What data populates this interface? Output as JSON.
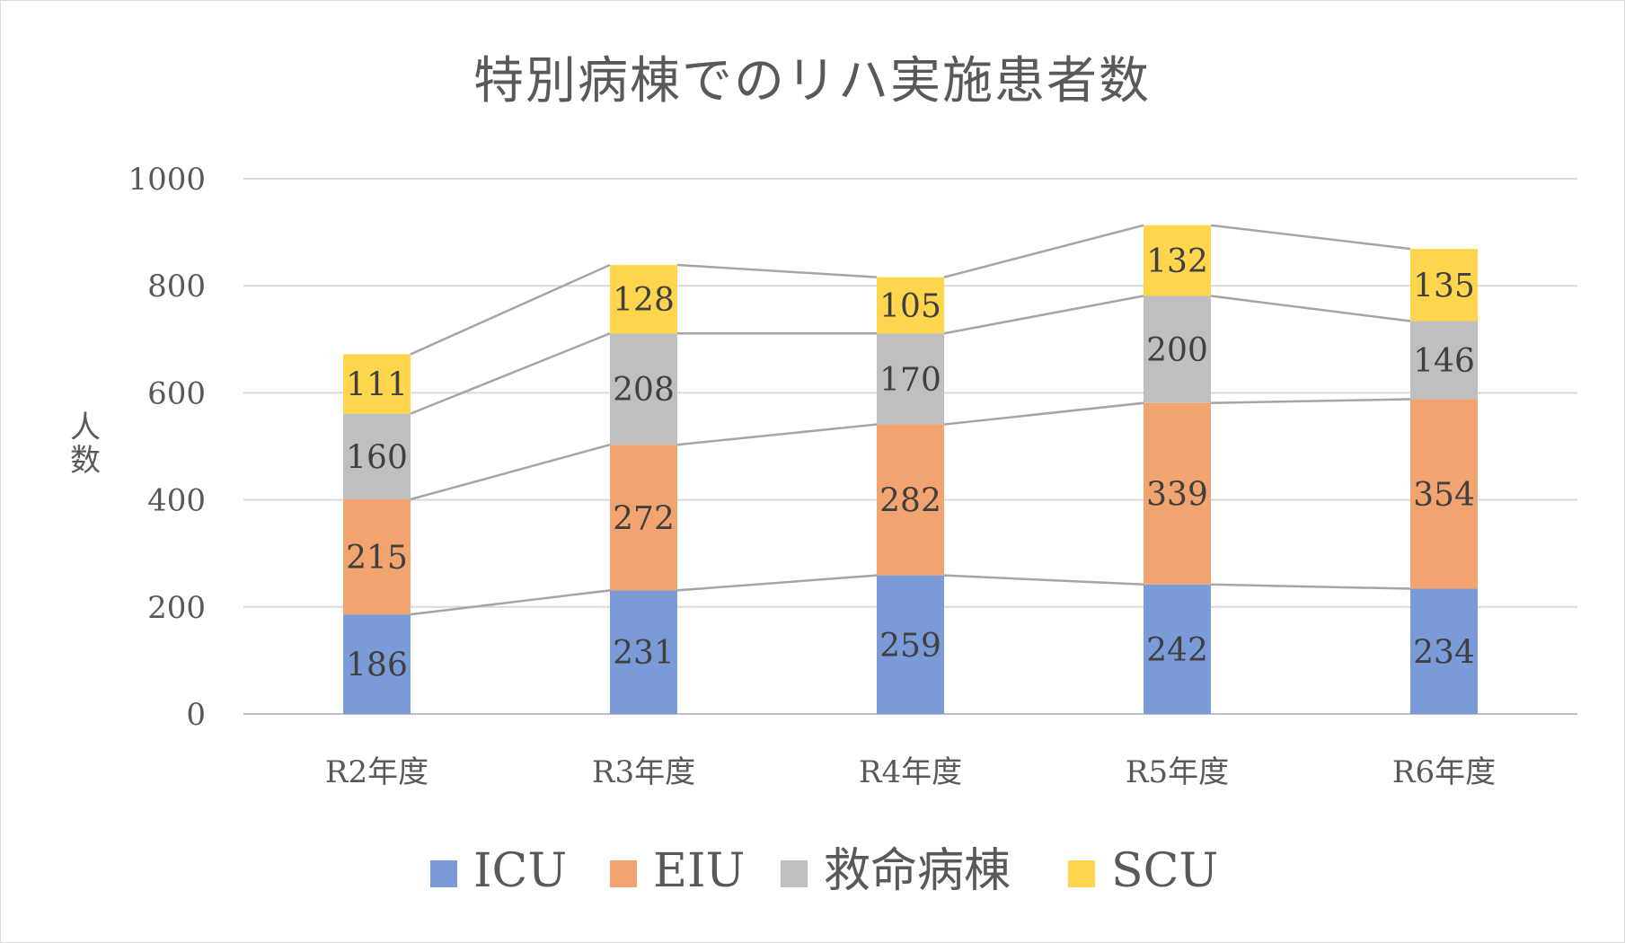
{
  "chart_data": {
    "type": "bar",
    "stacked": true,
    "title": "特別病棟でのリハ実施患者数",
    "ylabel": "人数",
    "xlabel": "",
    "ylim": [
      0,
      1000
    ],
    "yticks": [
      "0",
      "200",
      "400",
      "600",
      "800",
      "1000"
    ],
    "categories": [
      "R2年度",
      "R3年度",
      "R4年度",
      "R5年度",
      "R6年度"
    ],
    "series": [
      {
        "name": "ICU",
        "color": "#7b9ad8",
        "values": [
          186,
          231,
          259,
          242,
          234
        ]
      },
      {
        "name": "EIU",
        "color": "#f1a470",
        "values": [
          215,
          272,
          282,
          339,
          354
        ]
      },
      {
        "name": "救命病棟",
        "color": "#bfbfbf",
        "values": [
          160,
          208,
          170,
          200,
          146
        ]
      },
      {
        "name": "SCU",
        "color": "#ffd54d",
        "values": [
          111,
          128,
          105,
          132,
          135
        ]
      }
    ],
    "grid": true,
    "series_lines": true,
    "legend": "bottom"
  }
}
